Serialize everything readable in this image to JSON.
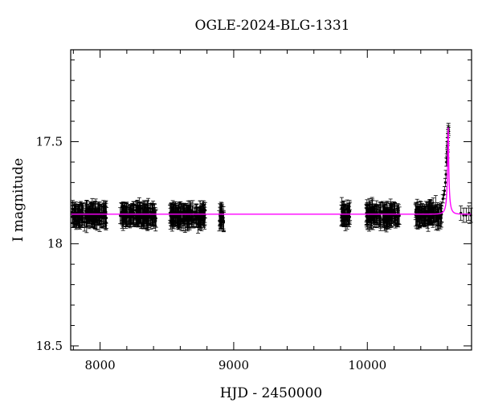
{
  "chart_data": {
    "type": "scatter",
    "title": "OGLE-2024-BLG-1331",
    "xlabel": "HJD - 2450000",
    "ylabel": "I magnitude",
    "xlim": [
      7780,
      10780
    ],
    "ylim": [
      18.52,
      17.05
    ],
    "y_inverted": true,
    "x_ticks": [
      8000,
      9000,
      10000
    ],
    "x_tick_labels": [
      "8000",
      "9000",
      "10000"
    ],
    "y_ticks": [
      17.5,
      18,
      18.5
    ],
    "y_tick_labels": [
      "17.5",
      "18",
      "18.5"
    ],
    "grid": false,
    "legend": "none",
    "colors": {
      "points": "#000000",
      "model": "#ff00ff"
    },
    "baseline_mag": 17.855,
    "peak": {
      "t0": 10605,
      "peak_mag": 17.43,
      "u0": 0.11,
      "tE": 28
    },
    "observing_seasons": [
      {
        "start": 7790,
        "end": 8050,
        "mean_mag": 17.86,
        "scatter": 0.05,
        "n": 140
      },
      {
        "start": 8150,
        "end": 8420,
        "mean_mag": 17.86,
        "scatter": 0.05,
        "n": 140
      },
      {
        "start": 8520,
        "end": 8790,
        "mean_mag": 17.86,
        "scatter": 0.05,
        "n": 140
      },
      {
        "start": 8890,
        "end": 8925,
        "mean_mag": 17.87,
        "scatter": 0.05,
        "n": 20
      },
      {
        "start": 9800,
        "end": 9870,
        "mean_mag": 17.86,
        "scatter": 0.05,
        "n": 40
      },
      {
        "start": 9990,
        "end": 10240,
        "mean_mag": 17.86,
        "scatter": 0.05,
        "n": 130
      },
      {
        "start": 10360,
        "end": 10560,
        "mean_mag": 17.86,
        "scatter": 0.05,
        "n": 100
      }
    ],
    "event_points": [
      {
        "x": 10565,
        "y": 17.78
      },
      {
        "x": 10572,
        "y": 17.76
      },
      {
        "x": 10578,
        "y": 17.74
      },
      {
        "x": 10584,
        "y": 17.7
      },
      {
        "x": 10588,
        "y": 17.66
      },
      {
        "x": 10592,
        "y": 17.6
      },
      {
        "x": 10595,
        "y": 17.58
      },
      {
        "x": 10597,
        "y": 17.55
      },
      {
        "x": 10599,
        "y": 17.52
      },
      {
        "x": 10601,
        "y": 17.5
      },
      {
        "x": 10603,
        "y": 17.48
      },
      {
        "x": 10604,
        "y": 17.46
      },
      {
        "x": 10606,
        "y": 17.44
      },
      {
        "x": 10607,
        "y": 17.43
      },
      {
        "x": 10608,
        "y": 17.45
      },
      {
        "x": 10600,
        "y": 17.56
      },
      {
        "x": 10602,
        "y": 17.53
      },
      {
        "x": 10596,
        "y": 17.6
      }
    ],
    "tail_points": [
      {
        "x": 10700,
        "y": 17.85
      },
      {
        "x": 10720,
        "y": 17.86
      },
      {
        "x": 10740,
        "y": 17.86
      },
      {
        "x": 10760,
        "y": 17.85
      },
      {
        "x": 10775,
        "y": 17.86
      }
    ]
  }
}
